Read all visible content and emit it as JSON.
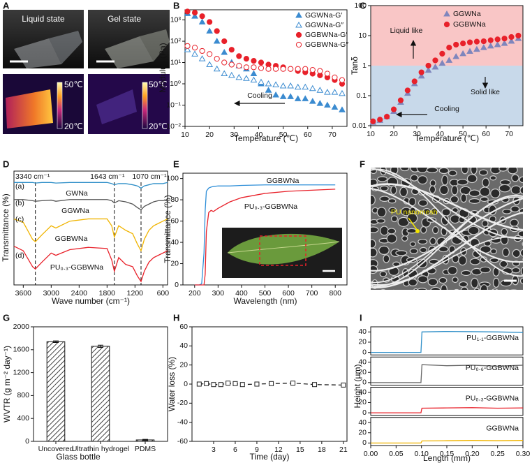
{
  "panel_a": {
    "panel": "A",
    "photo_labels": [
      "Liquid state",
      "Gel state"
    ],
    "scale_max": "50℃",
    "scale_min": "20℃"
  },
  "panel_f": {
    "panel": "F",
    "annotation": "PU nanomesh"
  },
  "chart_data": [
    {
      "panel": "B",
      "type": "line",
      "xlabel": "Temperature (℃)",
      "ylabel": "Modulus (Pa)",
      "xlim": [
        10,
        76
      ],
      "xticks": [
        10,
        20,
        30,
        40,
        50,
        60,
        70
      ],
      "ylim": [
        0.01,
        3000
      ],
      "ylog": true,
      "yticks": [
        {
          "value": 0.01,
          "label": "10⁻²"
        },
        {
          "value": 0.1,
          "label": "10⁻¹"
        },
        {
          "value": 1,
          "label": "10⁰"
        },
        {
          "value": 10,
          "label": "10¹"
        },
        {
          "value": 100,
          "label": "10²"
        },
        {
          "value": 1000,
          "label": "10³"
        }
      ],
      "legend": "upper right",
      "annotations": [
        "Cooling"
      ],
      "x": [
        11,
        14,
        17,
        20,
        23,
        26,
        29,
        32,
        35,
        38,
        41,
        44,
        47,
        50,
        53,
        56,
        59,
        62,
        65,
        68,
        71,
        74
      ],
      "series": [
        {
          "name": "GGWNa-G′",
          "color": "#3b8bd0",
          "marker": "triangle",
          "values": [
            2000,
            1500,
            800,
            300,
            100,
            30,
            10,
            7,
            5,
            3,
            1,
            0.5,
            0.3,
            0.25,
            0.25,
            0.2,
            0.2,
            0.15,
            0.12,
            0.1,
            0.08,
            0.06
          ]
        },
        {
          "name": "GGWNa-G″",
          "color": "#3b8bd0",
          "marker": "triangle-open",
          "values": [
            40,
            25,
            15,
            8,
            5,
            3,
            2.5,
            2,
            1.8,
            1.5,
            1.2,
            1,
            0.9,
            0.8,
            0.8,
            0.7,
            0.7,
            0.6,
            0.5,
            0.4,
            0.4,
            0.35
          ]
        },
        {
          "name": "GGBWNa-G′",
          "color": "#e8212a",
          "marker": "circle",
          "values": [
            2500,
            2200,
            1500,
            800,
            300,
            100,
            40,
            20,
            15,
            12,
            10,
            8,
            7,
            6,
            5,
            4,
            3.5,
            3,
            2.5,
            2,
            1.5,
            1
          ]
        },
        {
          "name": "GGBWNa-G″",
          "color": "#e8212a",
          "marker": "circle-open",
          "values": [
            60,
            50,
            35,
            25,
            15,
            10,
            8,
            7,
            6,
            6,
            5.5,
            5,
            5,
            5,
            5,
            5,
            5,
            4.5,
            4,
            3,
            2,
            1.5
          ]
        }
      ]
    },
    {
      "panel": "C",
      "type": "line",
      "xlabel": "Temperature (℃)",
      "ylabel": "Tanδ",
      "xlim": [
        10,
        76
      ],
      "xticks": [
        10,
        20,
        30,
        40,
        50,
        60,
        70
      ],
      "ylim": [
        0.01,
        100
      ],
      "ylog": true,
      "yticks": [
        0.01,
        0.1,
        1,
        10,
        100
      ],
      "regions": [
        {
          "from": 1,
          "to": 100,
          "color": "#f9c6c6"
        },
        {
          "from": 0.01,
          "to": 1,
          "color": "#c8d9ea"
        }
      ],
      "legend": "upper right",
      "annotations": [
        "Liquid like",
        "Solid like",
        "Cooling"
      ],
      "x": [
        11,
        14,
        17,
        20,
        23,
        26,
        29,
        32,
        35,
        38,
        41,
        44,
        47,
        50,
        53,
        56,
        59,
        62,
        65,
        68,
        71,
        74
      ],
      "series": [
        {
          "name": "GGWNa",
          "color": "#7f86bd",
          "marker": "triangle",
          "values": [
            0.013,
            0.015,
            0.02,
            0.03,
            0.06,
            0.12,
            0.25,
            0.45,
            0.7,
            0.9,
            1.2,
            1.5,
            2,
            2.5,
            3,
            3.5,
            4,
            4.5,
            5,
            5.5,
            6.5,
            8
          ]
        },
        {
          "name": "GGBWNa",
          "color": "#e8212a",
          "marker": "circle",
          "values": [
            0.014,
            0.016,
            0.02,
            0.035,
            0.07,
            0.15,
            0.3,
            0.6,
            1,
            1.5,
            2.5,
            4,
            5,
            5.5,
            6,
            6.3,
            6.5,
            7,
            7.5,
            8,
            9,
            10
          ]
        }
      ]
    },
    {
      "panel": "D",
      "type": "line",
      "xlabel": "Wave number (cm⁻¹)",
      "ylabel": "Transmittance (%)",
      "xlim": [
        3800,
        500
      ],
      "xticks": [
        3600,
        3000,
        2400,
        1800,
        1200,
        600
      ],
      "ylim": [
        0,
        100
      ],
      "vlines": [
        {
          "x": 3340,
          "label": "3340 cm⁻¹"
        },
        {
          "x": 1643,
          "label": "1643 cm⁻¹"
        },
        {
          "x": 1070,
          "label": "1070 cm⁻¹"
        }
      ],
      "x": [
        3800,
        3600,
        3400,
        3340,
        3200,
        3000,
        2900,
        2600,
        2200,
        1800,
        1700,
        1643,
        1550,
        1400,
        1250,
        1150,
        1070,
        1000,
        900,
        800,
        700,
        600,
        500
      ],
      "series": [
        {
          "tag": "(a)",
          "name": "GWNa",
          "color": "#2f8fc8",
          "line": "solid",
          "values": [
            90,
            90,
            90,
            89.5,
            90,
            90,
            89.5,
            90,
            90,
            90,
            89,
            88,
            89,
            89,
            88,
            87,
            85,
            87,
            88,
            89,
            89,
            89,
            90
          ]
        },
        {
          "tag": "(b)",
          "name": "GGWNa",
          "color": "#555555",
          "line": "solid",
          "values": [
            75,
            75,
            74,
            73.5,
            74,
            74.5,
            73.5,
            75,
            75,
            75,
            74,
            72,
            74,
            73,
            71,
            68,
            66,
            69,
            71,
            73,
            74,
            74,
            75
          ]
        },
        {
          "tag": "(c)",
          "name": "GGBWNa",
          "color": "#f0b400",
          "line": "solid",
          "values": [
            58,
            55,
            40,
            38,
            44,
            52,
            50,
            56,
            58,
            58,
            52,
            42,
            52,
            48,
            45,
            36,
            30,
            40,
            48,
            52,
            54,
            56,
            58
          ]
        },
        {
          "tag": "(d)",
          "name": "PU₀.₃-GGBWNa",
          "color": "#e8212a",
          "line": "solid",
          "values": [
            34,
            30,
            16,
            14,
            20,
            28,
            26,
            31,
            33,
            32,
            22,
            12,
            24,
            18,
            16,
            8,
            3,
            12,
            20,
            24,
            26,
            28,
            30
          ]
        }
      ]
    },
    {
      "panel": "E",
      "type": "line",
      "xlabel": "Wavelength (nm)",
      "ylabel": "Transmittance (%)",
      "xlim": [
        150,
        850
      ],
      "xticks": [
        200,
        300,
        400,
        500,
        600,
        700,
        800
      ],
      "ylim": [
        0,
        105
      ],
      "yticks": [
        0,
        20,
        40,
        60,
        80,
        100
      ],
      "x": [
        200,
        220,
        230,
        240,
        245,
        250,
        260,
        270,
        280,
        300,
        350,
        400,
        500,
        600,
        700,
        800
      ],
      "series": [
        {
          "name": "GGBWNa",
          "color": "#2f8fd8",
          "line": "solid",
          "values": [
            0,
            0,
            1,
            30,
            70,
            88,
            91,
            92,
            92.5,
            93,
            93,
            93.5,
            94,
            94,
            94,
            94
          ]
        },
        {
          "name": "PU₀.₃-GGBWNa",
          "color": "#e8212a",
          "line": "solid",
          "values": [
            0,
            0,
            0,
            0,
            10,
            50,
            68,
            70,
            69,
            72,
            78,
            82,
            86,
            88,
            89,
            90
          ]
        }
      ]
    },
    {
      "panel": "G",
      "type": "bar",
      "xlabel": "Glass bottle",
      "ylabel": "WVTR (g m⁻² day⁻¹)",
      "ylim": [
        0,
        2000
      ],
      "yticks": [
        0,
        400,
        800,
        1200,
        1600,
        2000
      ],
      "categories": [
        "Uncovered",
        "Ultrathin hydrogel",
        "PDMS"
      ],
      "values": [
        1740,
        1660,
        25
      ],
      "errors": [
        15,
        20,
        10
      ],
      "color": "#ffffff"
    },
    {
      "panel": "H",
      "type": "line",
      "xlabel": "Time (day)",
      "ylabel": "Water loss (%)",
      "xlim": [
        0,
        21.5
      ],
      "xticks": [
        3,
        6,
        9,
        12,
        15,
        18,
        21
      ],
      "ylim": [
        -60,
        60
      ],
      "yticks": [
        -60,
        -40,
        -20,
        0,
        20,
        40,
        60
      ],
      "x": [
        1,
        2,
        3,
        4,
        5,
        6,
        7,
        9,
        11,
        14,
        17,
        21
      ],
      "series": [
        {
          "color": "#222222",
          "line": "dashed",
          "marker": "square-open",
          "values": [
            0,
            0.5,
            -0.5,
            -0.5,
            1,
            0.5,
            -0.5,
            0,
            0.5,
            1,
            -0.5,
            -1
          ]
        }
      ]
    },
    {
      "panel": "I",
      "type": "stack",
      "xlabel": "Length (mm)",
      "ylabel": "Height (μm)",
      "xlim": [
        0,
        0.3
      ],
      "xticks": [
        {
          "value": 0,
          "label": "0.00"
        },
        {
          "value": 0.05,
          "label": "0.05"
        },
        {
          "value": 0.1,
          "label": "0.10"
        },
        {
          "value": 0.15,
          "label": "0.15"
        },
        {
          "value": 0.2,
          "label": "0.20"
        },
        {
          "value": 0.25,
          "label": "0.25"
        },
        {
          "value": 0.3,
          "label": "0.30"
        }
      ],
      "x": [
        0,
        0.099,
        0.1,
        0.101,
        0.15,
        0.2,
        0.25,
        0.3
      ],
      "series": [
        {
          "name": "PU₁.₁-GGBWNa",
          "color": "#2f8fc8",
          "ylim": [
            -5,
            50
          ],
          "yticks": [
            0,
            20,
            40
          ],
          "values": [
            0,
            0,
            20,
            40,
            41,
            40.5,
            40,
            39
          ]
        },
        {
          "name": "PU₀.₆-GGBWNa",
          "color": "#666666",
          "ylim": [
            -5,
            50
          ],
          "yticks": [
            0,
            20,
            40
          ],
          "values": [
            0,
            0,
            18,
            35,
            33,
            34,
            32,
            34
          ]
        },
        {
          "name": "PU₀.₃-GGBWNa",
          "color": "#e8212a",
          "ylim": [
            -5,
            50
          ],
          "yticks": [
            0,
            20,
            40
          ],
          "values": [
            0,
            0,
            5,
            9,
            9.5,
            10,
            9,
            9.5
          ]
        },
        {
          "name": "GGBWNa",
          "color": "#f0b400",
          "ylim": [
            -5,
            50
          ],
          "yticks": [
            0,
            20,
            40
          ],
          "values": [
            0,
            0,
            2,
            4,
            4.5,
            5,
            4.5,
            5
          ]
        }
      ]
    }
  ]
}
